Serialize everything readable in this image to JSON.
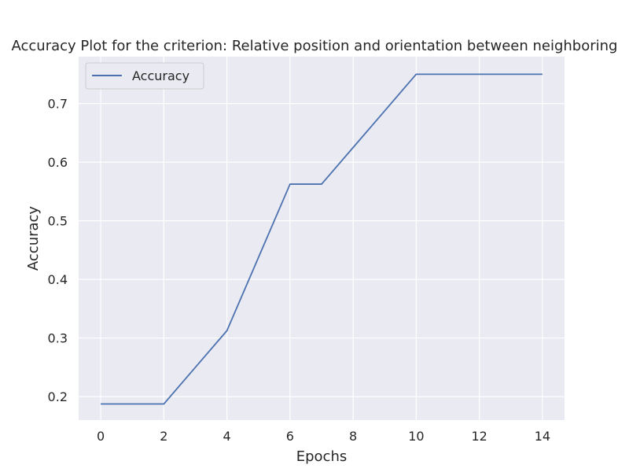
{
  "chart_data": {
    "type": "line",
    "title": "Accuracy Plot for the criterion: Relative position and orientation between neighboring",
    "xlabel": "Epochs",
    "ylabel": "Accuracy",
    "xlim": [
      -0.7,
      14.7
    ],
    "ylim": [
      0.16,
      0.78
    ],
    "xticks": [
      0,
      2,
      4,
      6,
      8,
      10,
      12,
      14
    ],
    "yticks": [
      0.2,
      0.3,
      0.4,
      0.5,
      0.6,
      0.7
    ],
    "grid": true,
    "legend_position": "top-left",
    "background_color": "#EAEAF2",
    "grid_color": "#FFFFFF",
    "series": [
      {
        "name": "Accuracy",
        "color": "#4C72B0",
        "x": [
          0,
          1,
          2,
          3,
          4,
          5,
          6,
          7,
          8,
          9,
          10,
          11,
          12,
          13,
          14
        ],
        "y": [
          0.1875,
          0.1875,
          0.1875,
          0.25,
          0.3125,
          0.4375,
          0.5625,
          0.5625,
          0.625,
          0.6875,
          0.75,
          0.75,
          0.75,
          0.75,
          0.75
        ]
      }
    ]
  }
}
